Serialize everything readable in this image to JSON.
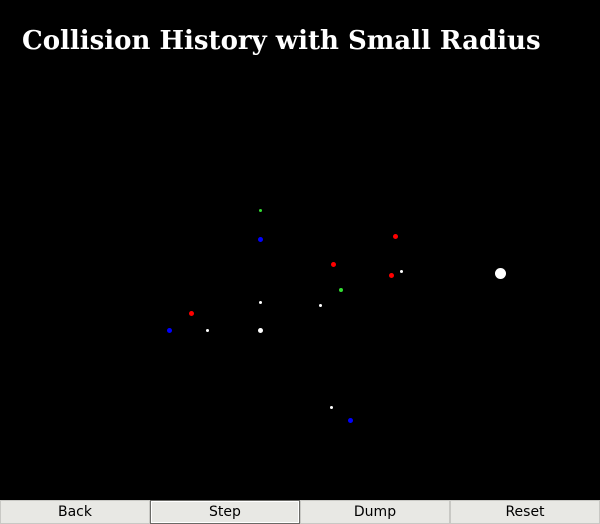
{
  "window": {
    "title": "Collision History with Small Radius"
  },
  "toolbar": {
    "buttons": [
      {
        "label": "Back"
      },
      {
        "label": "Step"
      },
      {
        "label": "Dump"
      },
      {
        "label": "Reset"
      }
    ]
  },
  "colors": {
    "background": "#000000",
    "title_text": "#ffffff",
    "toolbar_bg": "#e8e8e4",
    "particle_red": "#ff0000",
    "particle_blue": "#0000ff",
    "particle_green": "#33dd33",
    "particle_white": "#ffffff"
  },
  "particles": [
    {
      "color": "green"
    },
    {
      "color": "blue"
    },
    {
      "color": "red"
    },
    {
      "color": "red"
    },
    {
      "color": "red"
    },
    {
      "color": "white"
    },
    {
      "color": "white"
    },
    {
      "color": "green"
    },
    {
      "color": "white"
    },
    {
      "color": "white"
    },
    {
      "color": "red"
    },
    {
      "color": "blue"
    },
    {
      "color": "white"
    },
    {
      "color": "white"
    },
    {
      "color": "white"
    },
    {
      "color": "blue"
    }
  ]
}
